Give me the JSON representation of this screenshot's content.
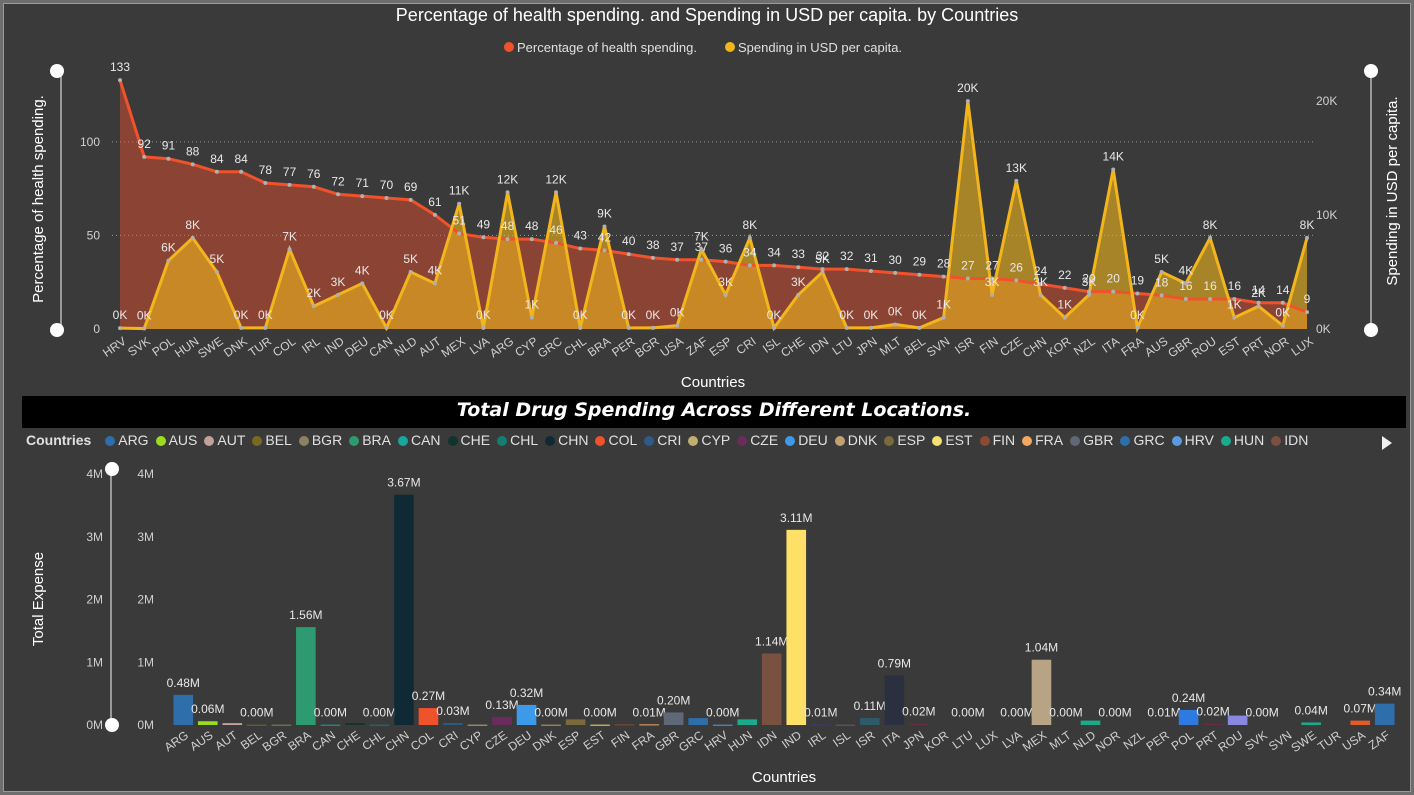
{
  "chart_data": [
    {
      "type": "line+area",
      "title": "Percentage of health spending. and Spending in USD per capita. by Countries",
      "xlabel": "Countries",
      "ylabel_left": "Percentage of health spending.",
      "ylabel_right": "Spending in USD per capita.",
      "legend": "top-center",
      "legend_items": [
        "Percentage of health spending.",
        "Spending in USD per capita."
      ],
      "colors": {
        "pct": "#f0522c",
        "usd": "#f2b51c"
      },
      "ylim_left": [
        0,
        140
      ],
      "yticks_left": [
        0,
        50,
        100
      ],
      "ylim_right": [
        0,
        23000
      ],
      "yticks_right": [
        0,
        10000,
        20000
      ],
      "yticks_right_labels": [
        "0K",
        "10K",
        "20K"
      ],
      "categories": [
        "HRV",
        "SVK",
        "POL",
        "HUN",
        "SWE",
        "DNK",
        "TUR",
        "COL",
        "IRL",
        "IND",
        "DEU",
        "CAN",
        "NLD",
        "AUT",
        "MEX",
        "LVA",
        "ARG",
        "CYP",
        "GRC",
        "CHL",
        "BRA",
        "PER",
        "BGR",
        "USA",
        "ZAF",
        "ESP",
        "CRI",
        "ISL",
        "CHE",
        "IDN",
        "LTU",
        "JPN",
        "MLT",
        "BEL",
        "SVN",
        "ISR",
        "FIN",
        "CZE",
        "CHN",
        "KOR",
        "NZL",
        "ITA",
        "FRA",
        "AUS",
        "GBR",
        "ROU",
        "EST",
        "PRT",
        "NOR",
        "LUX"
      ],
      "series": [
        {
          "name": "Percentage of health spending.",
          "values": [
            133,
            92,
            91,
            88,
            84,
            84,
            78,
            77,
            76,
            72,
            71,
            70,
            69,
            61,
            51,
            49,
            48,
            48,
            46,
            43,
            42,
            40,
            38,
            37,
            37,
            36,
            34,
            34,
            33,
            32,
            32,
            31,
            30,
            29,
            28,
            27,
            27,
            26,
            24,
            22,
            20,
            20,
            19,
            18,
            16,
            16,
            16,
            14,
            14,
            9
          ],
          "labels": [
            "133",
            "92",
            "91",
            "88",
            "84",
            "84",
            "78",
            "77",
            "76",
            "72",
            "71",
            "70",
            "69",
            "61",
            "51",
            "49",
            "48",
            "48",
            "46",
            "43",
            "42",
            "40",
            "38",
            "37",
            "37",
            "36",
            "34",
            "34",
            "33",
            "32",
            "32",
            "31",
            "30",
            "29",
            "28",
            "27",
            "27",
            "26",
            "24",
            "22",
            "20",
            "20",
            "19",
            "18",
            "16",
            "16",
            "16",
            "14",
            "14",
            "9"
          ]
        },
        {
          "name": "Spending in USD per capita.",
          "values": [
            80,
            40,
            6000,
            8000,
            5000,
            100,
            100,
            7000,
            2000,
            3000,
            4000,
            100,
            5000,
            4000,
            11000,
            100,
            12000,
            1000,
            12000,
            100,
            9000,
            100,
            100,
            300,
            7000,
            3000,
            8000,
            100,
            3000,
            5000,
            100,
            100,
            400,
            100,
            1000,
            20000,
            3000,
            13000,
            3000,
            1000,
            3000,
            14000,
            100,
            5000,
            4000,
            8000,
            1000,
            2000,
            300,
            8000
          ],
          "labels": [
            "0K",
            "0K",
            "6K",
            "8K",
            "5K",
            "0K",
            "0K",
            "7K",
            "2K",
            "3K",
            "4K",
            "0K",
            "5K",
            "4K",
            "11K",
            "0K",
            "12K",
            "1K",
            "12K",
            "0K",
            "9K",
            "0K",
            "0K",
            "0K",
            "7K",
            "3K",
            "8K",
            "0K",
            "3K",
            "5K",
            "0K",
            "0K",
            "0K",
            "0K",
            "1K",
            "20K",
            "3K",
            "13K",
            "3K",
            "1K",
            "3K",
            "14K",
            "0K",
            "5K",
            "4K",
            "8K",
            "1K",
            "2K",
            "0K",
            "8K"
          ]
        }
      ]
    },
    {
      "type": "bar",
      "title": "Total Drug Spending Across Different Locations.",
      "xlabel": "Countries",
      "ylabel": "Total Expense",
      "ylim": [
        0,
        4000000
      ],
      "yticks": [
        0,
        1000000,
        2000000,
        3000000,
        4000000
      ],
      "ytick_labels": [
        "0M",
        "1M",
        "2M",
        "3M",
        "4M"
      ],
      "legend_title": "Countries",
      "legend_visible": [
        "ARG",
        "AUS",
        "AUT",
        "BEL",
        "BGR",
        "BRA",
        "CAN",
        "CHE",
        "CHL",
        "CHN",
        "COL",
        "CRI",
        "CYP",
        "CZE",
        "DEU",
        "DNK",
        "ESP",
        "EST",
        "FIN",
        "FRA",
        "GBR",
        "GRC",
        "HRV",
        "HUN",
        "IDN"
      ],
      "categories": [
        "ARG",
        "AUS",
        "AUT",
        "BEL",
        "BGR",
        "BRA",
        "CAN",
        "CHE",
        "CHL",
        "CHN",
        "COL",
        "CRI",
        "CYP",
        "CZE",
        "DEU",
        "DNK",
        "ESP",
        "EST",
        "FIN",
        "FRA",
        "GBR",
        "GRC",
        "HRV",
        "HUN",
        "IDN",
        "IND",
        "IRL",
        "ISL",
        "ISR",
        "ITA",
        "JPN",
        "KOR",
        "LTU",
        "LUX",
        "LVA",
        "MEX",
        "MLT",
        "NLD",
        "NOR",
        "NZL",
        "PER",
        "POL",
        "PRT",
        "ROU",
        "SVK",
        "SVN",
        "SWE",
        "TUR",
        "USA",
        "ZAF"
      ],
      "values": [
        480000,
        60000,
        30000,
        5000,
        5000,
        1560000,
        5000,
        30000,
        5000,
        3670000,
        270000,
        30000,
        5000,
        130000,
        320000,
        5000,
        90000,
        5000,
        10000,
        10000,
        200000,
        110000,
        5000,
        90000,
        1140000,
        3110000,
        10000,
        5000,
        110000,
        790000,
        20000,
        5000,
        5000,
        5000,
        5000,
        1040000,
        5000,
        70000,
        5000,
        10000,
        10000,
        240000,
        20000,
        150000,
        5000,
        5000,
        40000,
        5000,
        70000,
        340000
      ],
      "labels": [
        "0.48M",
        "0.06M",
        "",
        "0.00M",
        "",
        "1.56M",
        "0.00M",
        "",
        "0.00M",
        "3.67M",
        "0.27M",
        "0.03M",
        "",
        "0.13M",
        "0.32M",
        "0.00M",
        "",
        "0.00M",
        "",
        "0.01M",
        "0.20M",
        "",
        "0.00M",
        "",
        "1.14M",
        "3.11M",
        "0.01M",
        "",
        "0.11M",
        "0.79M",
        "0.02M",
        "",
        "0.00M",
        "",
        "0.00M",
        "1.04M",
        "0.00M",
        "",
        "0.00M",
        "",
        "0.01M",
        "0.24M",
        "0.02M",
        "",
        "0.00M",
        "",
        "0.04M",
        "",
        "0.07M",
        "0.34M"
      ],
      "colors": [
        "#2e6eaa",
        "#9bdc1e",
        "#c4a09a",
        "#7a6a20",
        "#8a8262",
        "#2e9a72",
        "#16a79e",
        "#10332e",
        "#127e74",
        "#0f2a34",
        "#f0522c",
        "#2e5a8a",
        "#c0ad70",
        "#6a2c5c",
        "#3d9ae8",
        "#c4a070",
        "#7a6a3c",
        "#f2e070",
        "#8a4a34",
        "#f2a860",
        "#606878",
        "#2e6eaa",
        "#5c9ae0",
        "#1aaa8c",
        "#7a5040",
        "#ffe066",
        "#3a3a70",
        "#606060",
        "#2e5a6a",
        "#2a3040",
        "#6a2c3c",
        "#3a3a3a",
        "#3a3a3a",
        "#3a3a3a",
        "#3a3a3a",
        "#b8a484",
        "#3a3a3a",
        "#1aaa8c",
        "#3a3a3a",
        "#3a3a3a",
        "#3a3a3a",
        "#2e7ae0",
        "#6a2c3c",
        "#8888e0",
        "#3a3a3a",
        "#3a3a3a",
        "#1aaa8c",
        "#3a3a3a",
        "#e05a2c",
        "#2e6eaa"
      ]
    }
  ]
}
